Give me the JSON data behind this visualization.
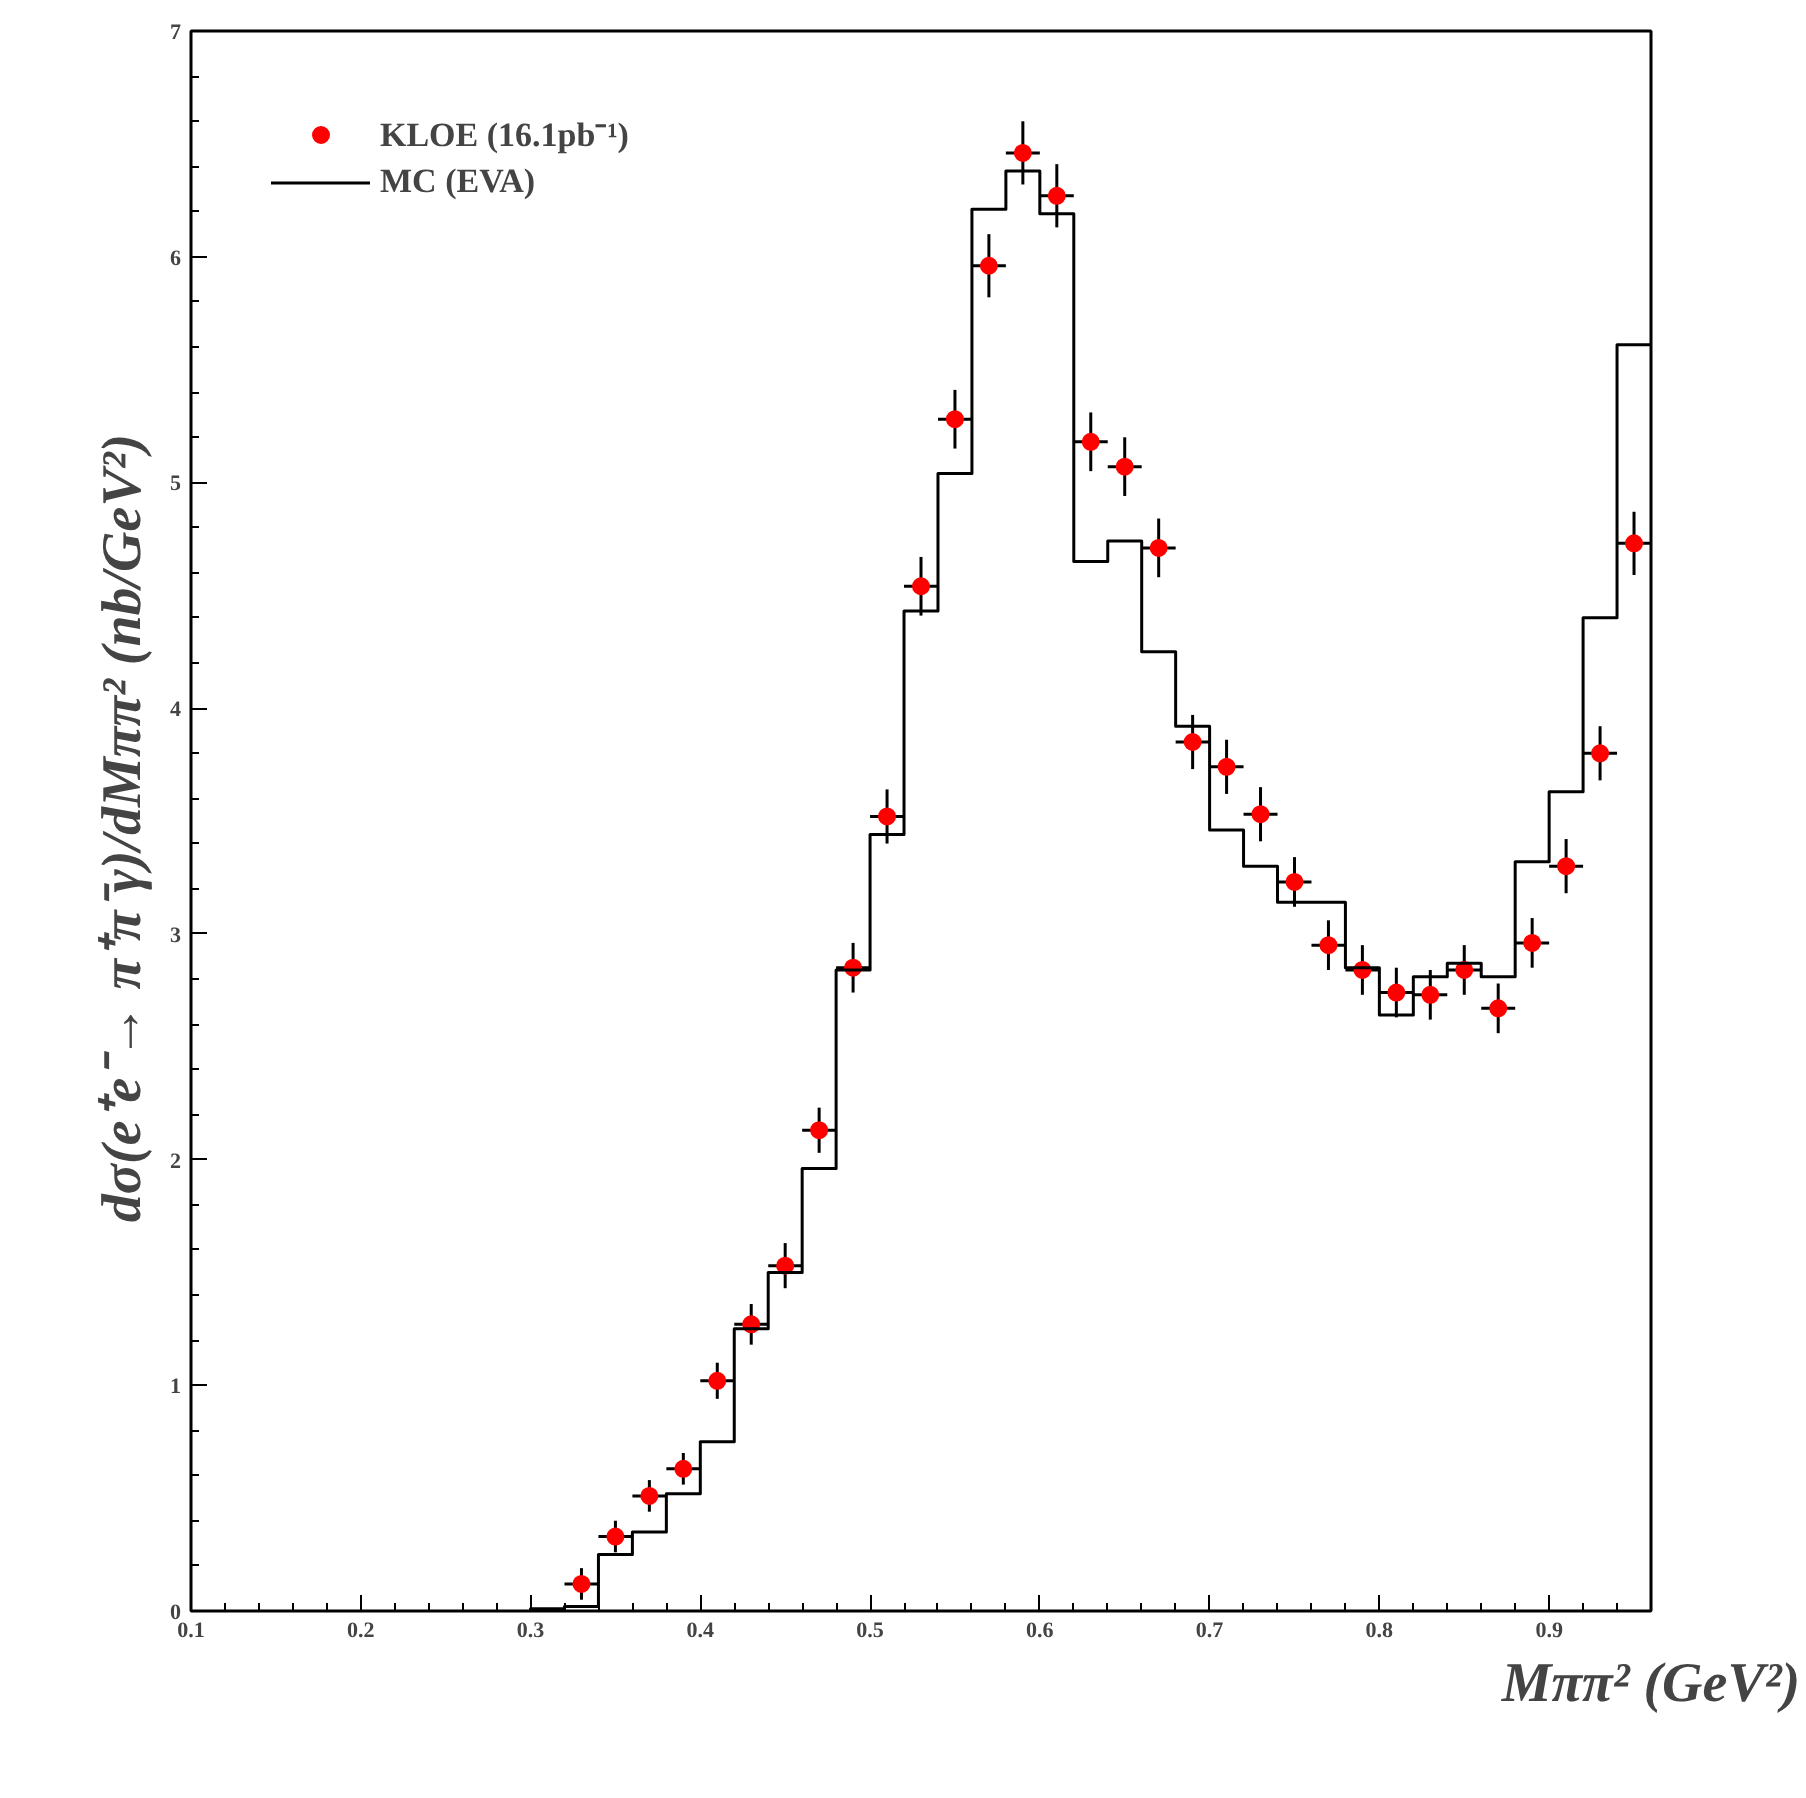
{
  "chart_data": {
    "type": "scatter",
    "xlabel": "Mππ² (GeV²)",
    "ylabel": "dσ(e⁺e⁻→ π⁺π⁻γ)/dMππ²  (nb/GeV²)",
    "xlim": [
      0.1,
      0.96
    ],
    "ylim": [
      0,
      7
    ],
    "xticks": [
      0.1,
      0.2,
      0.3,
      0.4,
      0.5,
      0.6,
      0.7,
      0.8,
      0.9
    ],
    "yticks": [
      0,
      1,
      2,
      3,
      4,
      5,
      6,
      7
    ],
    "grid": false,
    "legend": "top left",
    "marker": "circle",
    "series": [
      {
        "name": "KLOE (16.1pb⁻¹)",
        "color": "#ff0000",
        "x": [
          0.33,
          0.35,
          0.37,
          0.39,
          0.41,
          0.43,
          0.45,
          0.47,
          0.49,
          0.51,
          0.53,
          0.55,
          0.57,
          0.59,
          0.61,
          0.63,
          0.65,
          0.67,
          0.69,
          0.71,
          0.73,
          0.75,
          0.77,
          0.79,
          0.81,
          0.83,
          0.85,
          0.87,
          0.89,
          0.91,
          0.93,
          0.95
        ],
        "values": [
          0.12,
          0.33,
          0.51,
          0.63,
          1.02,
          1.27,
          1.53,
          2.13,
          2.85,
          3.52,
          4.54,
          5.28,
          5.96,
          6.46,
          6.27,
          5.18,
          5.07,
          4.71,
          3.85,
          3.74,
          3.53,
          3.23,
          2.95,
          2.84,
          2.74,
          2.73,
          2.84,
          2.67,
          2.96,
          3.3,
          3.8,
          4.73
        ],
        "errors": [
          0.07,
          0.07,
          0.07,
          0.07,
          0.08,
          0.09,
          0.1,
          0.1,
          0.11,
          0.12,
          0.13,
          0.13,
          0.14,
          0.14,
          0.14,
          0.13,
          0.13,
          0.13,
          0.12,
          0.12,
          0.12,
          0.11,
          0.11,
          0.11,
          0.11,
          0.11,
          0.11,
          0.11,
          0.11,
          0.12,
          0.12,
          0.14
        ],
        "xerrors": [
          0.01,
          0.01,
          0.01,
          0.01,
          0.01,
          0.01,
          0.01,
          0.01,
          0.01,
          0.01,
          0.01,
          0.01,
          0.01,
          0.01,
          0.01,
          0.01,
          0.01,
          0.01,
          0.01,
          0.01,
          0.01,
          0.01,
          0.01,
          0.01,
          0.01,
          0.01,
          0.01,
          0.01,
          0.01,
          0.01,
          0.01,
          0.01
        ]
      },
      {
        "name": "MC (EVA)",
        "type": "histogram",
        "color": "#000000",
        "bins": [
          0.3,
          0.32,
          0.34,
          0.36,
          0.38,
          0.4,
          0.42,
          0.44,
          0.46,
          0.48,
          0.5,
          0.52,
          0.54,
          0.56,
          0.58,
          0.6,
          0.62,
          0.64,
          0.66,
          0.68,
          0.7,
          0.72,
          0.74,
          0.76,
          0.78,
          0.8,
          0.82,
          0.84,
          0.86,
          0.88,
          0.9,
          0.92,
          0.94,
          0.96
        ],
        "values": [
          0.01,
          0.02,
          0.25,
          0.35,
          0.52,
          0.75,
          1.25,
          1.5,
          1.96,
          2.84,
          3.44,
          4.43,
          5.04,
          6.21,
          6.38,
          6.19,
          4.65,
          4.74,
          4.25,
          3.92,
          3.46,
          3.3,
          3.14,
          3.14,
          2.85,
          2.64,
          2.81,
          2.87,
          2.81,
          3.32,
          3.63,
          4.4,
          5.61
        ]
      }
    ]
  }
}
